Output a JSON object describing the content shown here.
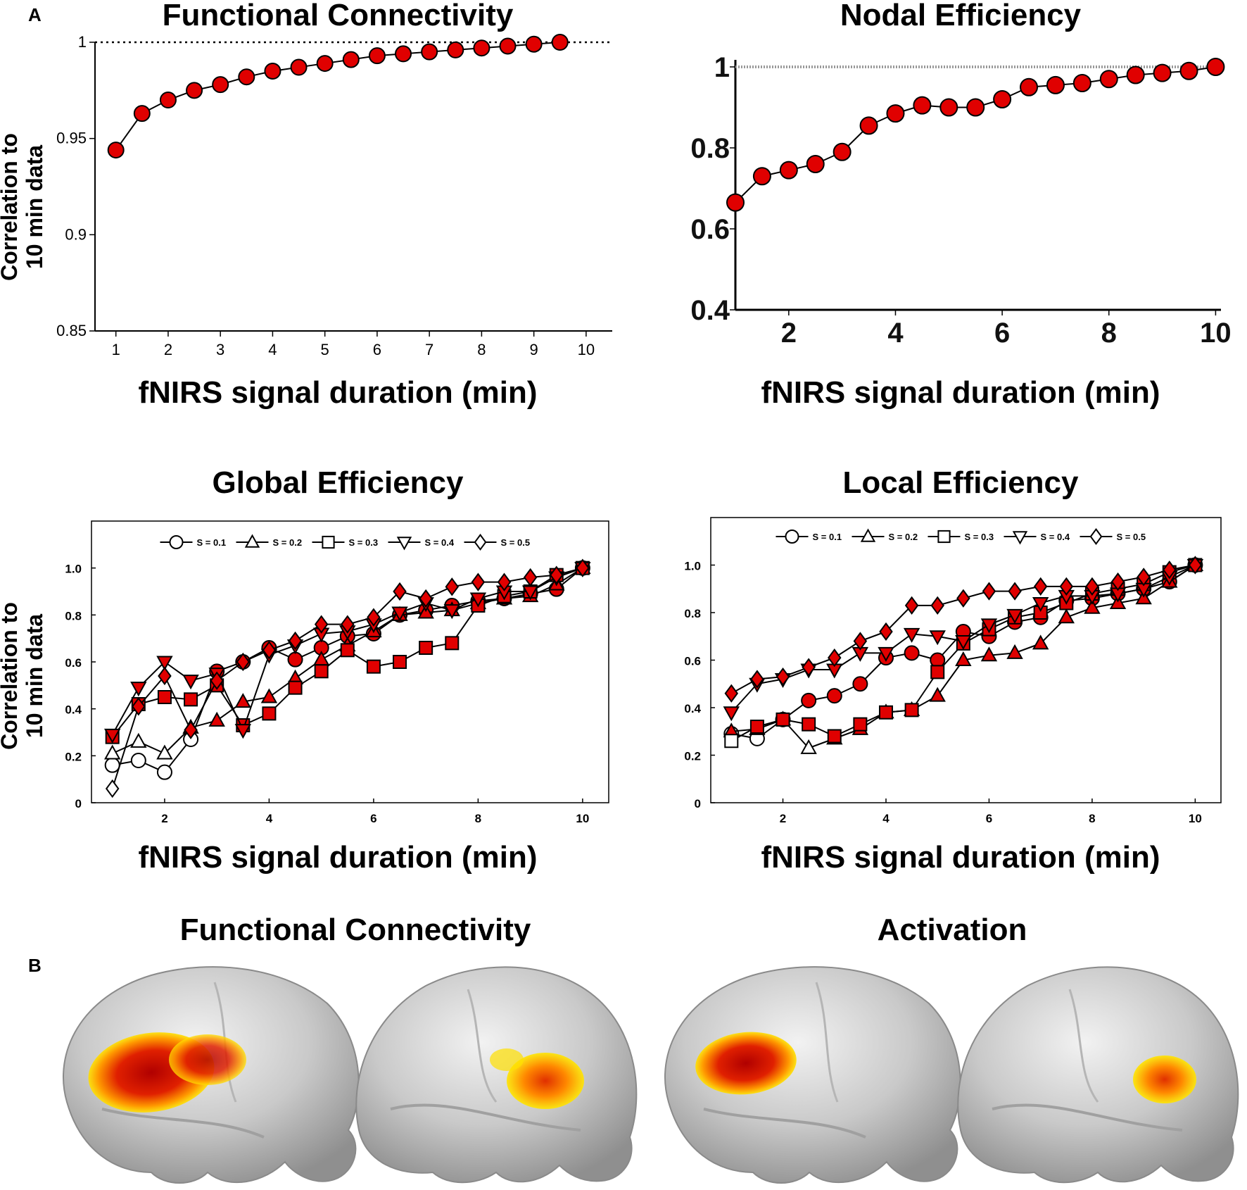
{
  "panel_labels": {
    "a": "A",
    "b": "B"
  },
  "colors": {
    "marker_fill": "#e00000",
    "marker_stroke": "#000000",
    "line": "#000000"
  },
  "chart_data": [
    {
      "id": "fc",
      "type": "line",
      "title": "Functional Connectivity",
      "xlabel": "fNIRS signal duration (min)",
      "ylabel_lines": [
        "Correlation to",
        "10 min data"
      ],
      "xlim": [
        0.6,
        10.5
      ],
      "ylim": [
        0.85,
        1.0
      ],
      "xticks": [
        1,
        2,
        3,
        4,
        5,
        6,
        7,
        8,
        9,
        10
      ],
      "xtick_labels": [
        "1",
        "2",
        "3",
        "4",
        "5",
        "6",
        "7",
        "8",
        "9",
        "10"
      ],
      "yticks": [
        0.85,
        0.9,
        0.95,
        1
      ],
      "ytick_labels": [
        "0.85",
        "0.9",
        "0.95",
        "1"
      ],
      "reference_line": 1,
      "series": [
        {
          "name": "FC",
          "marker": "circle",
          "x": [
            1,
            1.5,
            2,
            2.5,
            3,
            3.5,
            4,
            4.5,
            5,
            5.5,
            6,
            6.5,
            7,
            7.5,
            8,
            8.5,
            9,
            9.5
          ],
          "values": [
            0.944,
            0.963,
            0.97,
            0.975,
            0.978,
            0.982,
            0.985,
            0.987,
            0.989,
            0.991,
            0.993,
            0.994,
            0.995,
            0.996,
            0.997,
            0.998,
            0.999,
            1.0
          ],
          "filled": [
            true,
            true,
            true,
            true,
            true,
            true,
            true,
            true,
            true,
            true,
            true,
            true,
            true,
            true,
            true,
            true,
            true,
            true
          ]
        }
      ]
    },
    {
      "id": "ne",
      "type": "line",
      "title": "Nodal Efficiency",
      "xlabel": "fNIRS signal duration (min)",
      "ylabel_lines": [],
      "xlim": [
        1,
        10.1
      ],
      "ylim": [
        0.4,
        1.0
      ],
      "xticks": [
        2,
        4,
        6,
        8,
        10
      ],
      "xtick_labels": [
        "2",
        "4",
        "6",
        "8",
        "10"
      ],
      "yticks": [
        0.4,
        0.6,
        0.8,
        1
      ],
      "ytick_labels": [
        "0.4",
        "0.6",
        "0.8",
        "1"
      ],
      "reference_line": 1,
      "series": [
        {
          "name": "NE",
          "marker": "circle",
          "x": [
            1,
            1.5,
            2,
            2.5,
            3,
            3.5,
            4,
            4.5,
            5,
            5.5,
            6,
            6.5,
            7,
            7.5,
            8,
            8.5,
            9,
            9.5,
            10
          ],
          "values": [
            0.665,
            0.73,
            0.745,
            0.76,
            0.79,
            0.855,
            0.885,
            0.905,
            0.9,
            0.9,
            0.92,
            0.95,
            0.955,
            0.96,
            0.97,
            0.98,
            0.985,
            0.99,
            1.0
          ],
          "filled": [
            true,
            true,
            true,
            true,
            true,
            true,
            true,
            true,
            true,
            true,
            true,
            true,
            true,
            true,
            true,
            true,
            true,
            true,
            true
          ]
        }
      ]
    },
    {
      "id": "ge",
      "type": "line",
      "title": "Global Efficiency",
      "xlabel": "fNIRS signal duration (min)",
      "ylabel_lines": [
        "Correlation to",
        "10 min data"
      ],
      "xlim": [
        0.6,
        10.5
      ],
      "ylim": [
        0,
        1.2
      ],
      "xticks": [
        2,
        4,
        6,
        8,
        10
      ],
      "xtick_labels": [
        "2",
        "4",
        "6",
        "8",
        "10"
      ],
      "yticks": [
        0,
        0.2,
        0.4,
        0.6,
        0.8,
        1.0
      ],
      "ytick_labels": [
        "0",
        "0.2",
        "0.4",
        "0.6",
        "0.8",
        "1.0"
      ],
      "legend": {
        "placement": "top",
        "labels": [
          "S = 0.1",
          "S = 0.2",
          "S = 0.3",
          "S = 0.4",
          "S = 0.5"
        ]
      },
      "series": [
        {
          "name": "S = 0.1",
          "marker": "circle",
          "x": [
            1,
            1.5,
            2,
            2.5,
            3,
            3.5,
            4,
            4.5,
            5,
            5.5,
            6,
            6.5,
            7,
            7.5,
            8,
            8.5,
            9,
            9.5,
            10
          ],
          "values": [
            0.16,
            0.18,
            0.13,
            0.27,
            0.56,
            0.6,
            0.66,
            0.61,
            0.66,
            0.71,
            0.72,
            0.8,
            0.82,
            0.84,
            0.86,
            0.87,
            0.89,
            0.91,
            1.0
          ],
          "filled": [
            false,
            false,
            false,
            false,
            true,
            true,
            true,
            true,
            true,
            true,
            true,
            true,
            true,
            true,
            true,
            true,
            true,
            true,
            true
          ]
        },
        {
          "name": "S = 0.2",
          "marker": "triangle-up",
          "x": [
            1,
            1.5,
            2,
            2.5,
            3,
            3.5,
            4,
            4.5,
            5,
            5.5,
            6,
            6.5,
            7,
            7.5,
            8,
            8.5,
            9,
            9.5,
            10
          ],
          "values": [
            0.21,
            0.26,
            0.21,
            0.32,
            0.35,
            0.43,
            0.45,
            0.53,
            0.61,
            0.67,
            0.73,
            0.8,
            0.81,
            0.82,
            0.85,
            0.87,
            0.88,
            0.93,
            1.0
          ],
          "filled": [
            false,
            false,
            false,
            true,
            true,
            true,
            true,
            true,
            true,
            true,
            true,
            true,
            true,
            true,
            true,
            true,
            true,
            true,
            true
          ]
        },
        {
          "name": "S = 0.3",
          "marker": "square",
          "x": [
            1,
            1.5,
            2,
            2.5,
            3,
            3.5,
            4,
            4.5,
            5,
            5.5,
            6,
            6.5,
            7,
            7.5,
            8,
            8.5,
            9,
            9.5,
            10
          ],
          "values": [
            0.28,
            0.42,
            0.45,
            0.44,
            0.5,
            0.33,
            0.38,
            0.49,
            0.56,
            0.65,
            0.58,
            0.6,
            0.66,
            0.68,
            0.84,
            0.88,
            0.9,
            0.97,
            1.0
          ],
          "filled": [
            true,
            true,
            true,
            true,
            true,
            true,
            true,
            true,
            true,
            true,
            true,
            true,
            true,
            true,
            true,
            true,
            true,
            true,
            true
          ]
        },
        {
          "name": "S = 0.4",
          "marker": "triangle-down",
          "x": [
            1,
            1.5,
            2,
            2.5,
            3,
            3.5,
            4,
            4.5,
            5,
            5.5,
            6,
            6.5,
            7,
            7.5,
            8,
            8.5,
            9,
            9.5,
            10
          ],
          "values": [
            0.29,
            0.49,
            0.6,
            0.52,
            0.55,
            0.31,
            0.63,
            0.67,
            0.72,
            0.73,
            0.76,
            0.81,
            0.85,
            0.82,
            0.87,
            0.9,
            0.9,
            0.96,
            1.0
          ],
          "filled": [
            true,
            true,
            true,
            true,
            true,
            true,
            true,
            true,
            true,
            true,
            true,
            true,
            true,
            true,
            true,
            true,
            true,
            true,
            true
          ]
        },
        {
          "name": "S = 0.5",
          "marker": "diamond",
          "x": [
            1,
            1.5,
            2,
            2.5,
            3,
            3.5,
            4,
            4.5,
            5,
            5.5,
            6,
            6.5,
            7,
            7.5,
            8,
            8.5,
            9,
            9.5,
            10
          ],
          "values": [
            0.06,
            0.41,
            0.54,
            0.31,
            0.52,
            0.6,
            0.65,
            0.69,
            0.76,
            0.76,
            0.79,
            0.9,
            0.87,
            0.92,
            0.94,
            0.94,
            0.96,
            0.97,
            1.0
          ],
          "filled": [
            false,
            true,
            true,
            true,
            true,
            true,
            true,
            true,
            true,
            true,
            true,
            true,
            true,
            true,
            true,
            true,
            true,
            true,
            true
          ]
        }
      ]
    },
    {
      "id": "le",
      "type": "line",
      "title": "Local Efficiency",
      "xlabel": "fNIRS signal duration (min)",
      "ylabel_lines": [],
      "xlim": [
        0.6,
        10.5
      ],
      "ylim": [
        0,
        1.2
      ],
      "xticks": [
        2,
        4,
        6,
        8,
        10
      ],
      "xtick_labels": [
        "2",
        "4",
        "6",
        "8",
        "10"
      ],
      "yticks": [
        0,
        0.2,
        0.4,
        0.6,
        0.8,
        1.0
      ],
      "ytick_labels": [
        "0",
        "0.2",
        "0.4",
        "0.6",
        "0.8",
        "1.0"
      ],
      "legend": {
        "placement": "top",
        "labels": [
          "S = 0.1",
          "S = 0.2",
          "S = 0.3",
          "S = 0.4",
          "S = 0.5"
        ]
      },
      "series": [
        {
          "name": "S = 0.1",
          "marker": "circle",
          "x": [
            1,
            1.5,
            2,
            2.5,
            3,
            3.5,
            4,
            4.5,
            5,
            5.5,
            6,
            6.5,
            7,
            7.5,
            8,
            8.5,
            9,
            9.5,
            10
          ],
          "values": [
            0.29,
            0.27,
            0.35,
            0.43,
            0.45,
            0.5,
            0.61,
            0.63,
            0.6,
            0.72,
            0.7,
            0.76,
            0.78,
            0.85,
            0.86,
            0.88,
            0.9,
            0.93,
            1.0
          ],
          "filled": [
            false,
            false,
            true,
            true,
            true,
            true,
            true,
            true,
            true,
            true,
            true,
            true,
            true,
            true,
            true,
            true,
            true,
            true,
            true
          ]
        },
        {
          "name": "S = 0.2",
          "marker": "triangle-up",
          "x": [
            1,
            1.5,
            2,
            2.5,
            3,
            3.5,
            4,
            4.5,
            5,
            5.5,
            6,
            6.5,
            7,
            7.5,
            8,
            8.5,
            9,
            9.5,
            10
          ],
          "values": [
            0.3,
            0.31,
            0.35,
            0.23,
            0.27,
            0.31,
            0.38,
            0.39,
            0.45,
            0.6,
            0.62,
            0.63,
            0.67,
            0.78,
            0.82,
            0.84,
            0.86,
            0.93,
            1.0
          ],
          "filled": [
            true,
            true,
            true,
            false,
            true,
            true,
            true,
            true,
            true,
            true,
            true,
            true,
            true,
            true,
            true,
            true,
            true,
            true,
            true
          ]
        },
        {
          "name": "S = 0.3",
          "marker": "square",
          "x": [
            1,
            1.5,
            2,
            2.5,
            3,
            3.5,
            4,
            4.5,
            5,
            5.5,
            6,
            6.5,
            7,
            7.5,
            8,
            8.5,
            9,
            9.5,
            10
          ],
          "values": [
            0.26,
            0.32,
            0.35,
            0.33,
            0.28,
            0.33,
            0.38,
            0.39,
            0.55,
            0.67,
            0.73,
            0.78,
            0.8,
            0.84,
            0.88,
            0.9,
            0.92,
            0.97,
            1.0
          ],
          "filled": [
            false,
            true,
            true,
            true,
            true,
            true,
            true,
            true,
            true,
            true,
            true,
            true,
            true,
            true,
            true,
            true,
            true,
            true,
            true
          ]
        },
        {
          "name": "S = 0.4",
          "marker": "triangle-down",
          "x": [
            1,
            1.5,
            2,
            2.5,
            3,
            3.5,
            4,
            4.5,
            5,
            5.5,
            6,
            6.5,
            7,
            7.5,
            8,
            8.5,
            9,
            9.5,
            10
          ],
          "values": [
            0.38,
            0.5,
            0.52,
            0.56,
            0.56,
            0.63,
            0.63,
            0.71,
            0.7,
            0.68,
            0.75,
            0.79,
            0.84,
            0.87,
            0.87,
            0.88,
            0.9,
            0.95,
            1.0
          ],
          "filled": [
            true,
            true,
            true,
            true,
            true,
            true,
            true,
            true,
            true,
            true,
            true,
            true,
            true,
            true,
            true,
            true,
            true,
            true,
            true
          ]
        },
        {
          "name": "S = 0.5",
          "marker": "diamond",
          "x": [
            1,
            1.5,
            2,
            2.5,
            3,
            3.5,
            4,
            4.5,
            5,
            5.5,
            6,
            6.5,
            7,
            7.5,
            8,
            8.5,
            9,
            9.5,
            10
          ],
          "values": [
            0.46,
            0.52,
            0.53,
            0.57,
            0.61,
            0.68,
            0.72,
            0.83,
            0.83,
            0.86,
            0.89,
            0.89,
            0.91,
            0.91,
            0.91,
            0.93,
            0.95,
            0.98,
            1.0
          ],
          "filled": [
            true,
            true,
            true,
            true,
            true,
            true,
            true,
            true,
            true,
            true,
            true,
            true,
            true,
            true,
            true,
            true,
            true,
            true,
            true
          ]
        }
      ]
    }
  ],
  "brain_section": {
    "fc_title": "Functional Connectivity",
    "activation_title": "Activation",
    "views": [
      {
        "name": "fc-left-view",
        "blob": "large-red"
      },
      {
        "name": "fc-right-view",
        "blob": "small-orange"
      },
      {
        "name": "activation-left-view",
        "blob": "large-red"
      },
      {
        "name": "activation-right-view",
        "blob": "small-orange"
      }
    ]
  }
}
